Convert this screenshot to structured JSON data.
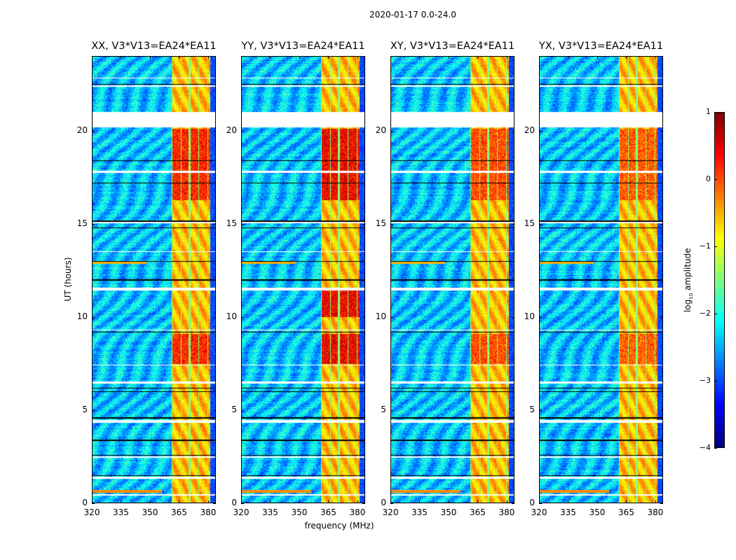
{
  "chart_data": {
    "type": "heatmap",
    "title": "2020-01-17 0.0-24.0",
    "xlabel": "frequency (MHz)",
    "ylabel": "UT (hours)",
    "xlim": [
      320,
      384
    ],
    "ylim": [
      0,
      24
    ],
    "xticks": [
      "320",
      "335",
      "350",
      "365",
      "380"
    ],
    "xtick_values": [
      320,
      335,
      350,
      365,
      380
    ],
    "yticks": [
      "0",
      "5",
      "10",
      "15",
      "20"
    ],
    "ytick_values": [
      0,
      5,
      10,
      15,
      20
    ],
    "colormap": "jet",
    "colorbar": {
      "label_main": "log",
      "label_sub": "10",
      "label_rest": " amplitude",
      "range": [
        -4,
        1
      ],
      "ticks": [
        "1",
        "0",
        "−1",
        "−2",
        "−3",
        "−4"
      ],
      "tick_values": [
        1,
        0,
        -1,
        -2,
        -3,
        -4
      ]
    },
    "panels": [
      {
        "title": "XX, V3*V13=EA24*EA11",
        "band_peak": 0.7
      },
      {
        "title": "YY, V3*V13=EA24*EA11",
        "band_peak": 0.9
      },
      {
        "title": "XY, V3*V13=EA24*EA11",
        "band_peak": 0.5
      },
      {
        "title": "YX, V3*V13=EA24*EA11",
        "band_peak": 0.4
      }
    ],
    "background_level": -3.0,
    "rfi_band_mhz": [
      361,
      381
    ],
    "rfi_band_level": -0.8,
    "flagged_ut_ranges": [
      [
        20.2,
        21.0
      ],
      [
        22.35,
        22.45
      ],
      [
        22.8,
        22.85
      ],
      [
        17.75,
        17.85
      ],
      [
        15.05,
        15.1
      ],
      [
        11.45,
        11.6
      ],
      [
        6.45,
        6.55
      ],
      [
        4.35,
        4.5
      ],
      [
        2.45,
        2.55
      ],
      [
        1.35,
        1.45
      ],
      [
        0.45,
        0.5
      ],
      [
        9.3,
        9.35
      ],
      [
        7.4,
        7.45
      ],
      [
        13.5,
        13.55
      ]
    ],
    "black_ut_lines": [
      22.5,
      18.4,
      17.2,
      15.15,
      14.8,
      13.0,
      12.0,
      9.2,
      6.2,
      6.0,
      4.6,
      3.4,
      2.6,
      1.5
    ]
  }
}
